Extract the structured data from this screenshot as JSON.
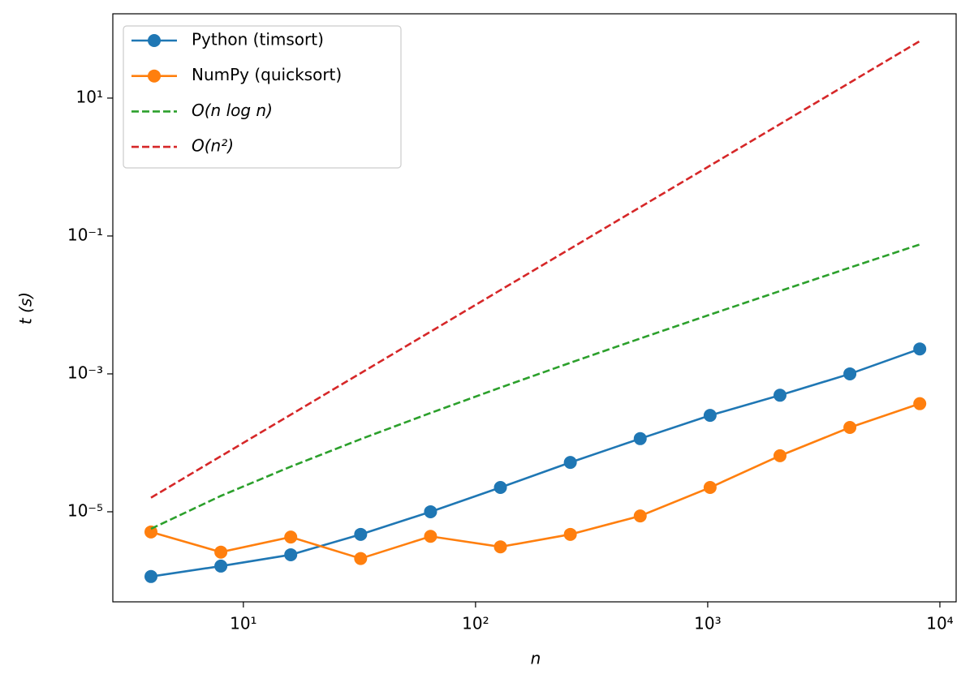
{
  "chart_data": {
    "type": "line",
    "x_label": "n",
    "y_label": "t (s)",
    "x": [
      4,
      8,
      16,
      32,
      64,
      128,
      256,
      512,
      1024,
      2048,
      4096,
      8192
    ],
    "series": [
      {
        "name": "Python (timsort)",
        "color": "#1f77b4",
        "dashed": false,
        "marker": true,
        "values": [
          1.15e-06,
          1.63e-06,
          2.38e-06,
          4.7e-06,
          1e-05,
          2.25e-05,
          5.2e-05,
          0.000115,
          0.00025,
          0.00049,
          0.001,
          0.0023
        ]
      },
      {
        "name": "NumPy (quicksort)",
        "color": "#ff7f0e",
        "dashed": false,
        "marker": true,
        "values": [
          5.1e-06,
          2.6e-06,
          4.3e-06,
          2.1e-06,
          4.4e-06,
          3.1e-06,
          4.7e-06,
          8.7e-06,
          2.25e-05,
          6.5e-05,
          0.000167,
          0.00037
        ]
      },
      {
        "name": "O(n log n)",
        "color": "#2ca02c",
        "dashed": true,
        "marker": false,
        "values": [
          5.66e-06,
          1.7e-05,
          4.52e-05,
          0.000113,
          0.000271,
          0.000633,
          0.00145,
          0.00326,
          0.00724,
          0.0159,
          0.0348,
          0.0753
        ]
      },
      {
        "name": "O(n²)",
        "color": "#d62728",
        "dashed": true,
        "marker": false,
        "values": [
          1.6e-05,
          6.4e-05,
          0.000256,
          0.001024,
          0.004096,
          0.0164,
          0.0655,
          0.262,
          1.049,
          4.194,
          16.78,
          67.1
        ]
      }
    ],
    "xlog": true,
    "ylog": true,
    "xlim": [
      2.74,
      11750
    ],
    "ylim": [
      4.94e-07,
      167
    ],
    "xticks": [
      {
        "value": 10,
        "label": "10¹"
      },
      {
        "value": 100,
        "label": "10²"
      },
      {
        "value": 1000,
        "label": "10³"
      },
      {
        "value": 10000,
        "label": "10⁴"
      }
    ],
    "yticks": [
      {
        "value": 1e-05,
        "label": "10⁻⁵"
      },
      {
        "value": 0.001,
        "label": "10⁻³"
      },
      {
        "value": 0.1,
        "label": "10⁻¹"
      },
      {
        "value": 10,
        "label": "10¹"
      }
    ],
    "legend": "upper left",
    "grid": false
  }
}
